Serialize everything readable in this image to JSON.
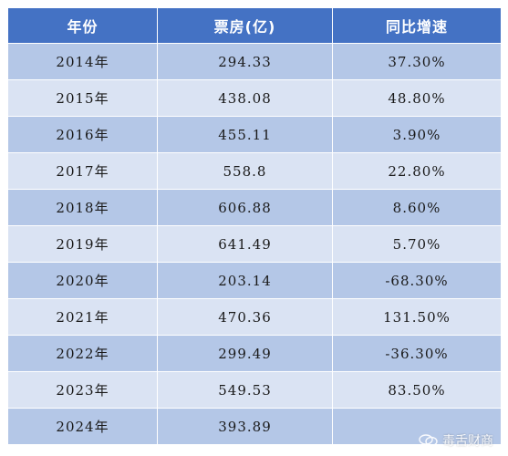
{
  "table": {
    "headers": [
      "年份",
      "票房(亿)",
      "同比增速"
    ],
    "rows": [
      [
        "2014年",
        "294.33",
        "37.30%"
      ],
      [
        "2015年",
        "438.08",
        "48.80%"
      ],
      [
        "2016年",
        "455.11",
        "3.90%"
      ],
      [
        "2017年",
        "558.8",
        "22.80%"
      ],
      [
        "2018年",
        "606.88",
        "8.60%"
      ],
      [
        "2019年",
        "641.49",
        "5.70%"
      ],
      [
        "2020年",
        "203.14",
        "-68.30%"
      ],
      [
        "2021年",
        "470.36",
        "131.50%"
      ],
      [
        "2022年",
        "299.49",
        "-36.30%"
      ],
      [
        "2023年",
        "549.53",
        "83.50%"
      ],
      [
        "2024年",
        "393.89",
        ""
      ]
    ]
  },
  "watermark": {
    "text": "毒舌财商",
    "icon": "chat-bubble-logo-icon"
  },
  "colors": {
    "header_bg": "#4472c4",
    "row_dark": "#b4c7e7",
    "row_light": "#dae3f3"
  }
}
